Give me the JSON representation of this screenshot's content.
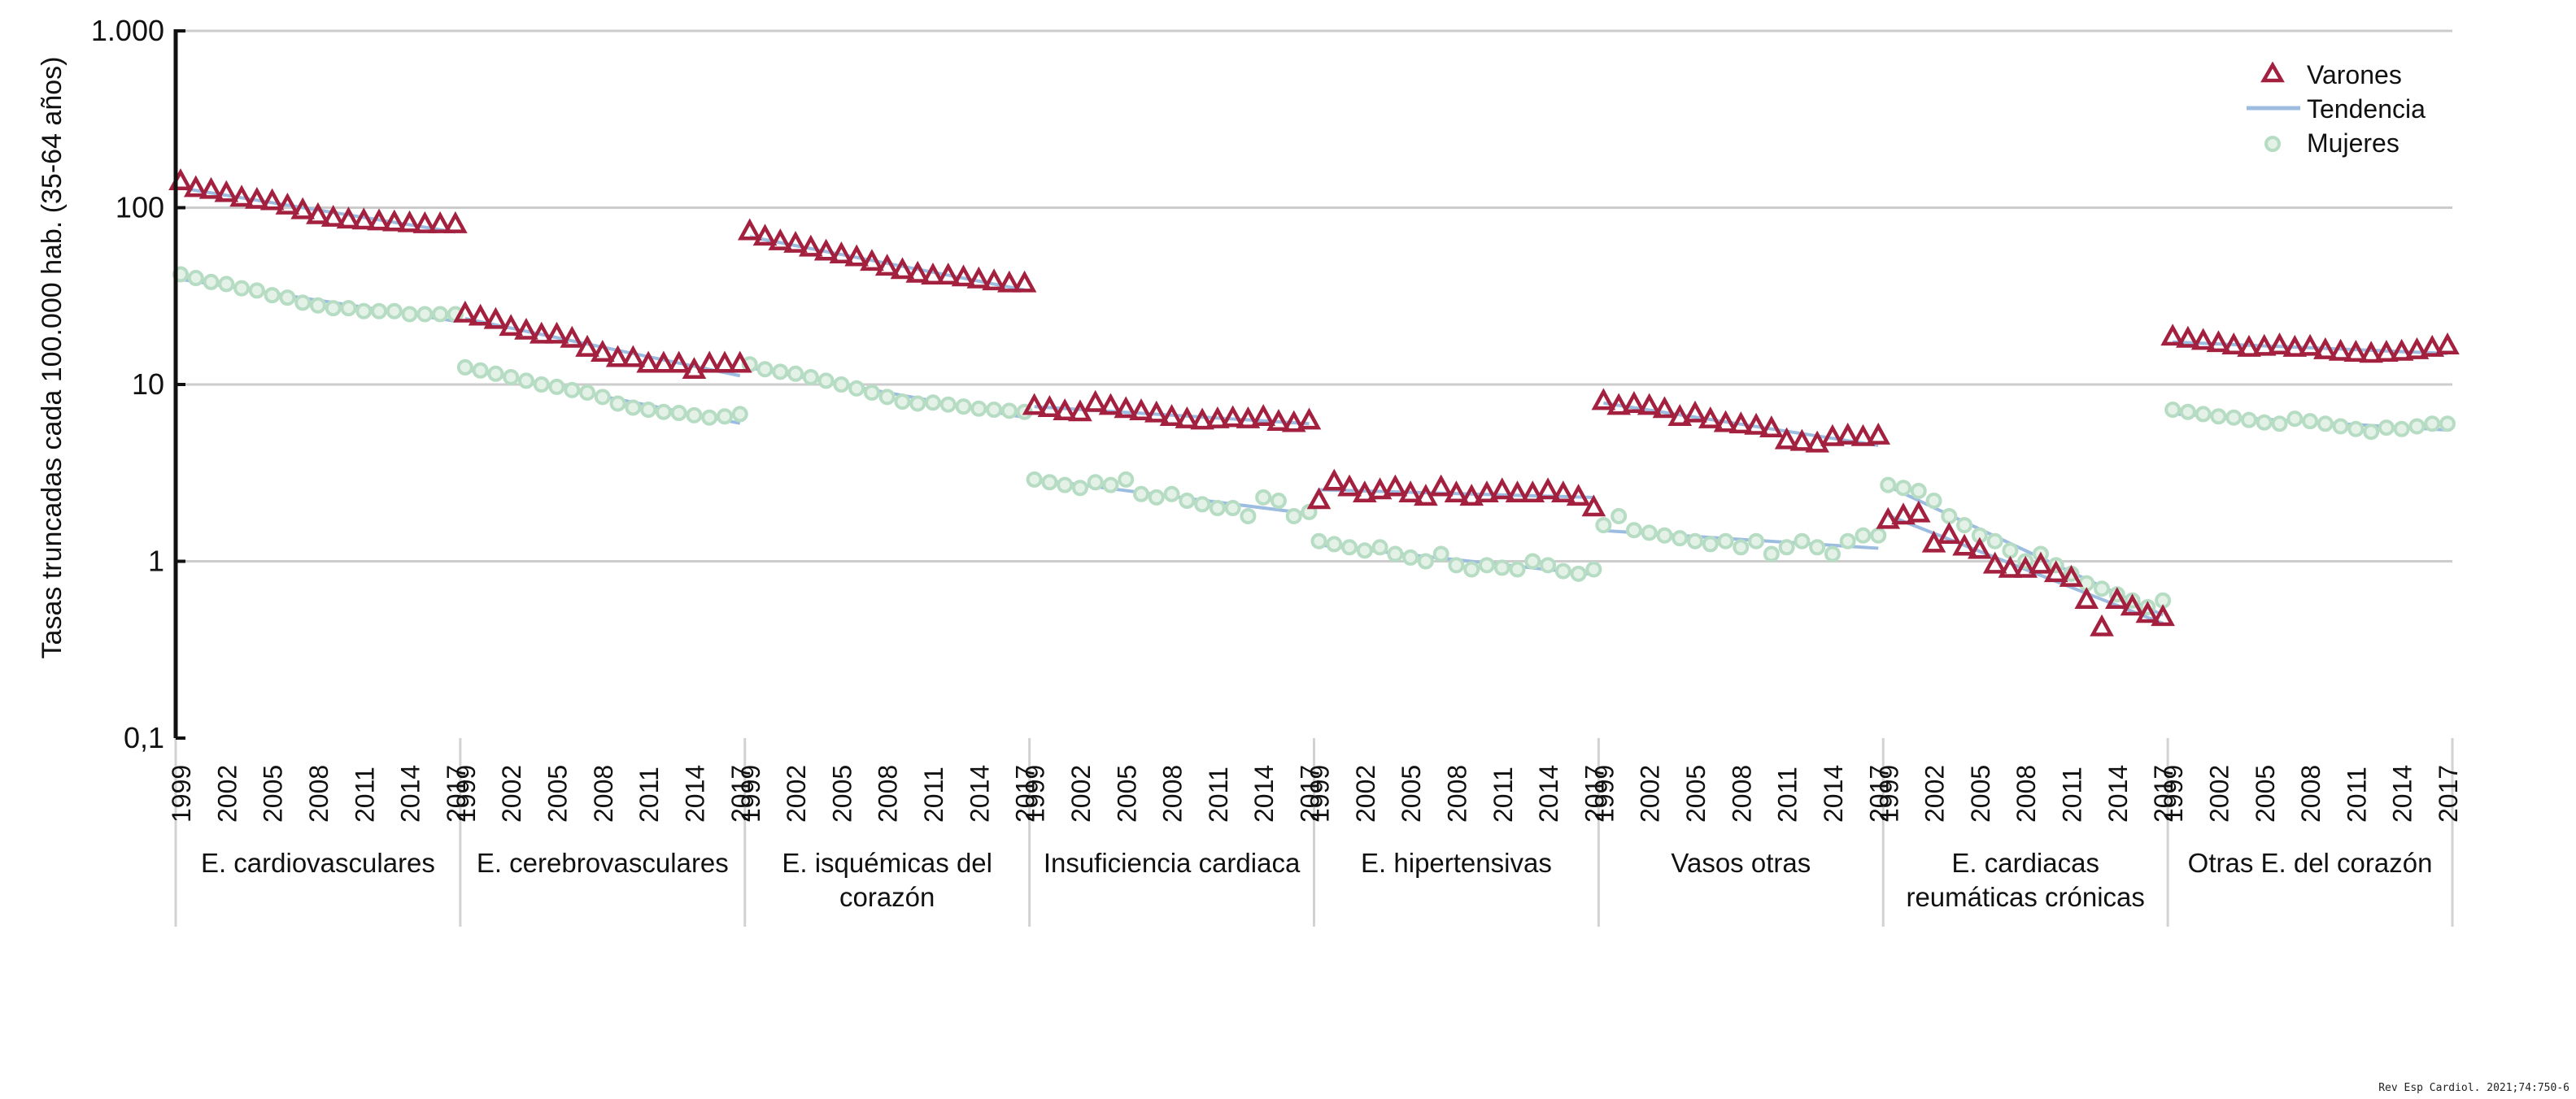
{
  "chart_data": {
    "type": "scatter",
    "scale": "log",
    "ylabel": "Tasas truncadas cada 100.000 hab. (35-64 años)",
    "y_ticks": [
      {
        "value": 1000,
        "label": "1.000"
      },
      {
        "value": 100,
        "label": "100"
      },
      {
        "value": 10,
        "label": "10"
      },
      {
        "value": 1,
        "label": "1"
      },
      {
        "value": 0.1,
        "label": "0,1"
      }
    ],
    "ylim": [
      0.1,
      1000
    ],
    "years": [
      1999,
      2000,
      2001,
      2002,
      2003,
      2004,
      2005,
      2006,
      2007,
      2008,
      2009,
      2010,
      2011,
      2012,
      2013,
      2014,
      2015,
      2016,
      2017
    ],
    "year_tick_labels": [
      "1999",
      "2002",
      "2005",
      "2008",
      "2011",
      "2014",
      "2017"
    ],
    "legend": {
      "position": "top-right",
      "varones": "Varones",
      "tendencia": "Tendencia",
      "mujeres": "Mujeres"
    },
    "colors": {
      "varones": "#a3203f",
      "tendencia": "#9cbde0",
      "mujeres_stroke": "#b7dcc4",
      "mujeres_fill": "#e3f1e7",
      "grid": "#cccccc"
    },
    "groups": [
      {
        "name": "E. cardiovasculares",
        "name_lines": [
          "E. cardiovasculares"
        ],
        "varones": [
          140,
          128,
          125,
          120,
          113,
          110,
          108,
          102,
          96,
          90,
          87,
          85,
          84,
          83,
          82,
          81,
          80,
          80,
          80
        ],
        "mujeres": [
          42,
          40,
          38,
          37,
          35,
          34,
          32,
          31,
          29,
          28,
          27,
          27,
          26,
          26,
          26,
          25,
          25,
          25,
          25
        ]
      },
      {
        "name": "E. cerebrovasculares",
        "name_lines": [
          "E. cerebrovasculares"
        ],
        "varones": [
          25,
          24,
          23,
          21,
          20,
          19,
          19,
          18,
          16,
          15,
          14,
          14,
          13,
          13,
          13,
          12,
          13,
          13,
          13
        ],
        "mujeres": [
          12.5,
          12,
          11.5,
          11,
          10.5,
          10,
          9.7,
          9.3,
          9,
          8.5,
          7.8,
          7.4,
          7.2,
          7.0,
          6.9,
          6.7,
          6.5,
          6.6,
          6.8
        ]
      },
      {
        "name": "E. isquémicas del corazón",
        "name_lines": [
          "E. isquémicas del",
          "corazón"
        ],
        "varones": [
          73,
          68,
          64,
          62,
          59,
          56,
          54,
          52,
          49,
          46,
          44,
          42,
          41,
          41,
          40,
          39,
          38,
          37,
          37
        ],
        "mujeres": [
          13,
          12.2,
          11.8,
          11.5,
          11,
          10.5,
          10,
          9.5,
          9,
          8.5,
          8,
          7.8,
          7.9,
          7.7,
          7.5,
          7.3,
          7.2,
          7.1,
          7.0
        ]
      },
      {
        "name": "Insuficiencia cardiaca",
        "name_lines": [
          "Insuficiencia cardiaca"
        ],
        "varones": [
          7.5,
          7.3,
          7.0,
          6.9,
          7.8,
          7.5,
          7.2,
          7.0,
          6.8,
          6.5,
          6.3,
          6.2,
          6.3,
          6.4,
          6.3,
          6.5,
          6.1,
          6.0,
          6.2
        ],
        "mujeres": [
          2.9,
          2.8,
          2.7,
          2.6,
          2.8,
          2.7,
          2.9,
          2.4,
          2.3,
          2.4,
          2.2,
          2.1,
          2.0,
          2.0,
          1.8,
          2.3,
          2.2,
          1.8,
          1.9
        ]
      },
      {
        "name": "E. hipertensivas",
        "name_lines": [
          "E. hipertensivas"
        ],
        "varones": [
          2.2,
          2.8,
          2.6,
          2.4,
          2.5,
          2.6,
          2.4,
          2.3,
          2.6,
          2.4,
          2.3,
          2.4,
          2.5,
          2.4,
          2.4,
          2.5,
          2.4,
          2.3,
          2.0
        ],
        "mujeres": [
          1.3,
          1.25,
          1.2,
          1.15,
          1.2,
          1.1,
          1.05,
          1.0,
          1.1,
          0.95,
          0.9,
          0.95,
          0.92,
          0.9,
          1.0,
          0.95,
          0.88,
          0.85,
          0.9
        ]
      },
      {
        "name": "Vasos otras",
        "name_lines": [
          "Vasos otras"
        ],
        "varones": [
          8.0,
          7.5,
          7.7,
          7.5,
          7.2,
          6.5,
          6.8,
          6.3,
          6.0,
          5.9,
          5.8,
          5.6,
          4.8,
          4.7,
          4.6,
          5.0,
          5.1,
          5.0,
          5.1
        ],
        "mujeres": [
          1.6,
          1.8,
          1.5,
          1.45,
          1.4,
          1.35,
          1.3,
          1.25,
          1.3,
          1.2,
          1.3,
          1.1,
          1.2,
          1.3,
          1.2,
          1.1,
          1.3,
          1.4,
          1.4
        ]
      },
      {
        "name": "E. cardiacas reumáticas crónicas",
        "name_lines": [
          "E. cardiacas",
          "reumáticas crónicas"
        ],
        "varones": [
          1.7,
          1.8,
          1.85,
          1.25,
          1.4,
          1.2,
          1.15,
          0.95,
          0.9,
          0.9,
          0.95,
          0.85,
          0.8,
          0.6,
          0.42,
          0.6,
          0.55,
          0.5,
          0.48
        ],
        "mujeres": [
          2.7,
          2.6,
          2.5,
          2.2,
          1.8,
          1.6,
          1.4,
          1.3,
          1.15,
          1.0,
          1.1,
          0.95,
          0.85,
          0.75,
          0.7,
          0.65,
          0.6,
          0.55,
          0.6
        ]
      },
      {
        "name": "Otras E. del corazón",
        "name_lines": [
          "Otras E. del corazón"
        ],
        "varones": [
          18.5,
          18,
          17.5,
          17,
          16.5,
          16,
          16.2,
          16.5,
          16,
          16.2,
          15.5,
          15.2,
          15.0,
          14.8,
          15.0,
          15.2,
          15.5,
          16.0,
          16.5
        ],
        "mujeres": [
          7.2,
          7.0,
          6.8,
          6.6,
          6.5,
          6.3,
          6.1,
          6.0,
          6.4,
          6.2,
          6.0,
          5.8,
          5.6,
          5.4,
          5.7,
          5.6,
          5.8,
          6.0,
          6.0
        ]
      }
    ]
  },
  "credit": "Rev Esp Cardiol. 2021;74:750-6"
}
